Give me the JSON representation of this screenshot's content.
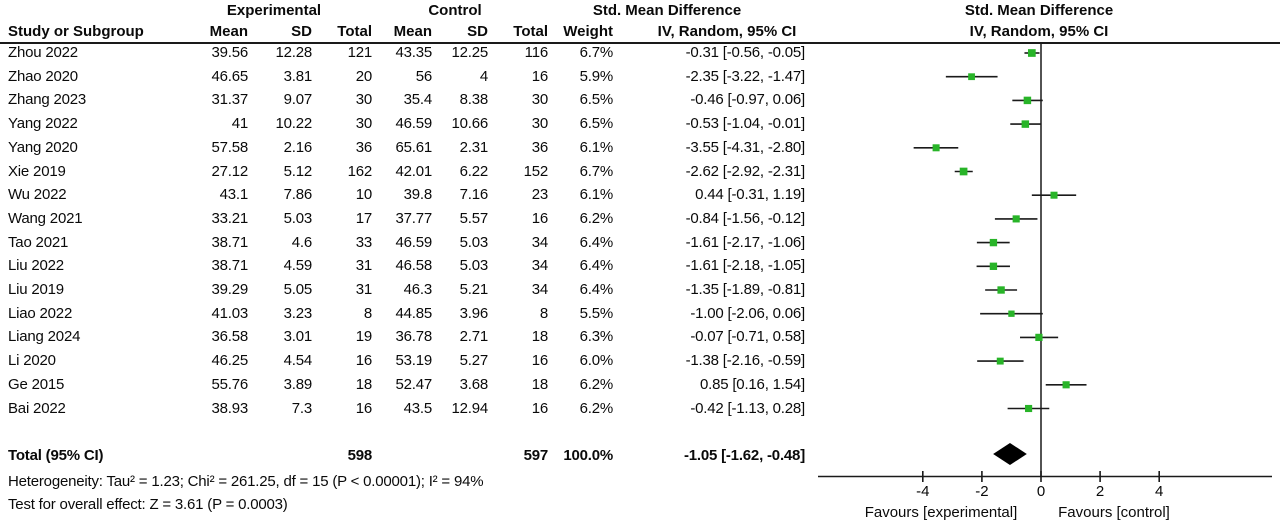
{
  "header": {
    "group_experimental": "Experimental",
    "group_control": "Control",
    "col_study": "Study or Subgroup",
    "col_mean": "Mean",
    "col_sd": "SD",
    "col_total": "Total",
    "col_weight": "Weight",
    "smd_title": "Std. Mean Difference",
    "method_label": "IV, Random, 95% CI"
  },
  "footer": {
    "heterogeneity": "Heterogeneity: Tau² = 1.23; Chi² = 261.25, df = 15 (P < 0.00001); I² = 94%",
    "overall_effect": "Test for overall effect: Z = 3.61 (P = 0.0003)",
    "favours_left": "Favours [experimental]",
    "favours_right": "Favours [control]"
  },
  "colors": {
    "marker_green": "#28b428",
    "line_black": "#1a1a1a",
    "diamond_black": "#000000"
  },
  "chart_data": {
    "type": "forest",
    "effect_measure": "Std. Mean Difference",
    "method": "IV, Random, 95% CI",
    "x_ticks": [
      -4,
      -2,
      0,
      2,
      4
    ],
    "xlim": [
      -7.5,
      7.8
    ],
    "studies": [
      {
        "study": "Zhou 2022",
        "exp_mean": "39.56",
        "exp_sd": "12.28",
        "exp_total": "121",
        "ctl_mean": "43.35",
        "ctl_sd": "12.25",
        "ctl_total": "116",
        "weight": "6.7%",
        "ci_label": "-0.31 [-0.56, -0.05]",
        "est": -0.31,
        "lo": -0.56,
        "hi": -0.05
      },
      {
        "study": "Zhao 2020",
        "exp_mean": "46.65",
        "exp_sd": "3.81",
        "exp_total": "20",
        "ctl_mean": "56",
        "ctl_sd": "4",
        "ctl_total": "16",
        "weight": "5.9%",
        "ci_label": "-2.35 [-3.22, -1.47]",
        "est": -2.35,
        "lo": -3.22,
        "hi": -1.47
      },
      {
        "study": "Zhang 2023",
        "exp_mean": "31.37",
        "exp_sd": "9.07",
        "exp_total": "30",
        "ctl_mean": "35.4",
        "ctl_sd": "8.38",
        "ctl_total": "30",
        "weight": "6.5%",
        "ci_label": "-0.46 [-0.97, 0.06]",
        "est": -0.46,
        "lo": -0.97,
        "hi": 0.06
      },
      {
        "study": "Yang 2022",
        "exp_mean": "41",
        "exp_sd": "10.22",
        "exp_total": "30",
        "ctl_mean": "46.59",
        "ctl_sd": "10.66",
        "ctl_total": "30",
        "weight": "6.5%",
        "ci_label": "-0.53 [-1.04, -0.01]",
        "est": -0.53,
        "lo": -1.04,
        "hi": -0.01
      },
      {
        "study": "Yang 2020",
        "exp_mean": "57.58",
        "exp_sd": "2.16",
        "exp_total": "36",
        "ctl_mean": "65.61",
        "ctl_sd": "2.31",
        "ctl_total": "36",
        "weight": "6.1%",
        "ci_label": "-3.55 [-4.31, -2.80]",
        "est": -3.55,
        "lo": -4.31,
        "hi": -2.8
      },
      {
        "study": "Xie 2019",
        "exp_mean": "27.12",
        "exp_sd": "5.12",
        "exp_total": "162",
        "ctl_mean": "42.01",
        "ctl_sd": "6.22",
        "ctl_total": "152",
        "weight": "6.7%",
        "ci_label": "-2.62 [-2.92, -2.31]",
        "est": -2.62,
        "lo": -2.92,
        "hi": -2.31
      },
      {
        "study": "Wu 2022",
        "exp_mean": "43.1",
        "exp_sd": "7.86",
        "exp_total": "10",
        "ctl_mean": "39.8",
        "ctl_sd": "7.16",
        "ctl_total": "23",
        "weight": "6.1%",
        "ci_label": "0.44 [-0.31, 1.19]",
        "est": 0.44,
        "lo": -0.31,
        "hi": 1.19
      },
      {
        "study": "Wang 2021",
        "exp_mean": "33.21",
        "exp_sd": "5.03",
        "exp_total": "17",
        "ctl_mean": "37.77",
        "ctl_sd": "5.57",
        "ctl_total": "16",
        "weight": "6.2%",
        "ci_label": "-0.84 [-1.56, -0.12]",
        "est": -0.84,
        "lo": -1.56,
        "hi": -0.12
      },
      {
        "study": "Tao 2021",
        "exp_mean": "38.71",
        "exp_sd": "4.6",
        "exp_total": "33",
        "ctl_mean": "46.59",
        "ctl_sd": "5.03",
        "ctl_total": "34",
        "weight": "6.4%",
        "ci_label": "-1.61 [-2.17, -1.06]",
        "est": -1.61,
        "lo": -2.17,
        "hi": -1.06
      },
      {
        "study": "Liu 2022",
        "exp_mean": "38.71",
        "exp_sd": "4.59",
        "exp_total": "31",
        "ctl_mean": "46.58",
        "ctl_sd": "5.03",
        "ctl_total": "34",
        "weight": "6.4%",
        "ci_label": "-1.61 [-2.18, -1.05]",
        "est": -1.61,
        "lo": -2.18,
        "hi": -1.05
      },
      {
        "study": "Liu 2019",
        "exp_mean": "39.29",
        "exp_sd": "5.05",
        "exp_total": "31",
        "ctl_mean": "46.3",
        "ctl_sd": "5.21",
        "ctl_total": "34",
        "weight": "6.4%",
        "ci_label": "-1.35 [-1.89, -0.81]",
        "est": -1.35,
        "lo": -1.89,
        "hi": -0.81
      },
      {
        "study": "Liao 2022",
        "exp_mean": "41.03",
        "exp_sd": "3.23",
        "exp_total": "8",
        "ctl_mean": "44.85",
        "ctl_sd": "3.96",
        "ctl_total": "8",
        "weight": "5.5%",
        "ci_label": "-1.00 [-2.06, 0.06]",
        "est": -1.0,
        "lo": -2.06,
        "hi": 0.06
      },
      {
        "study": "Liang 2024",
        "exp_mean": "36.58",
        "exp_sd": "3.01",
        "exp_total": "19",
        "ctl_mean": "36.78",
        "ctl_sd": "2.71",
        "ctl_total": "18",
        "weight": "6.3%",
        "ci_label": "-0.07 [-0.71, 0.58]",
        "est": -0.07,
        "lo": -0.71,
        "hi": 0.58
      },
      {
        "study": "Li 2020",
        "exp_mean": "46.25",
        "exp_sd": "4.54",
        "exp_total": "16",
        "ctl_mean": "53.19",
        "ctl_sd": "5.27",
        "ctl_total": "16",
        "weight": "6.0%",
        "ci_label": "-1.38 [-2.16, -0.59]",
        "est": -1.38,
        "lo": -2.16,
        "hi": -0.59
      },
      {
        "study": "Ge 2015",
        "exp_mean": "55.76",
        "exp_sd": "3.89",
        "exp_total": "18",
        "ctl_mean": "52.47",
        "ctl_sd": "3.68",
        "ctl_total": "18",
        "weight": "6.2%",
        "ci_label": "0.85 [0.16, 1.54]",
        "est": 0.85,
        "lo": 0.16,
        "hi": 1.54
      },
      {
        "study": "Bai 2022",
        "exp_mean": "38.93",
        "exp_sd": "7.3",
        "exp_total": "16",
        "ctl_mean": "43.5",
        "ctl_sd": "12.94",
        "ctl_total": "16",
        "weight": "6.2%",
        "ci_label": "-0.42 [-1.13, 0.28]",
        "est": -0.42,
        "lo": -1.13,
        "hi": 0.28
      }
    ],
    "total": {
      "label": "Total (95% CI)",
      "exp_total": "598",
      "ctl_total": "597",
      "weight": "100.0%",
      "ci_label": "-1.05 [-1.62, -0.48]",
      "est": -1.05,
      "lo": -1.62,
      "hi": -0.48
    }
  }
}
